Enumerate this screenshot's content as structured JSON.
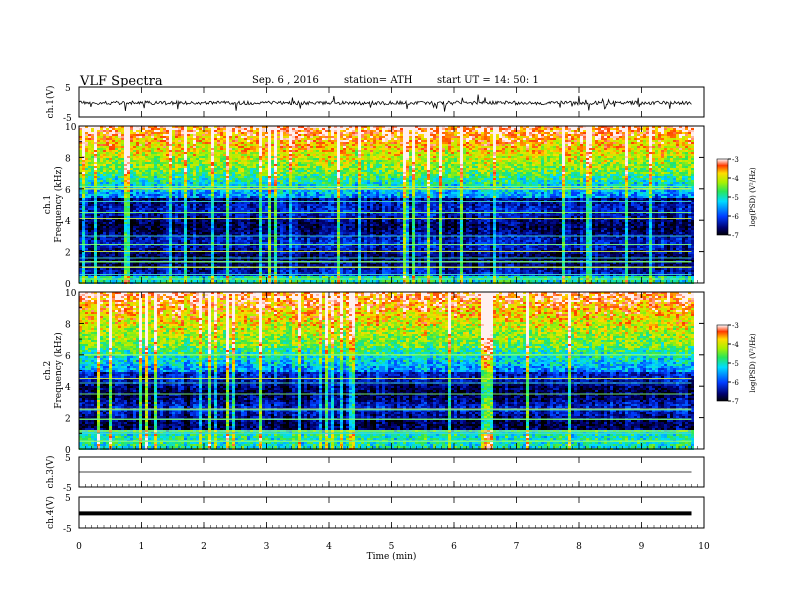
{
  "header": {
    "title": "VLF Spectra",
    "date": "Sep. 6  , 2016",
    "station": "station= ATH",
    "start": "start  UT =   14: 50: 1"
  },
  "chart_data": [
    {
      "type": "line",
      "panel": "ch1-waveform",
      "ylabel": "ch.1(V)",
      "ylim": [
        -5,
        5
      ],
      "yticks": [
        -5,
        5
      ],
      "xlim": [
        0,
        10
      ],
      "description_of_signal": "noisy trace around -0.3 V with frequent spikes",
      "color": "#000000"
    },
    {
      "type": "heatmap",
      "panel": "ch1-spectrogram",
      "ylabel": "ch.1",
      "ylabel2": "Frequency  (kHz)",
      "ylim": [
        0,
        10
      ],
      "yticks": [
        0,
        2,
        4,
        6,
        8,
        10
      ],
      "xlim": [
        0,
        9.8
      ],
      "colorbar": {
        "label": "log(PSD) (V²/Hz)",
        "range": [
          -7,
          -3
        ],
        "ticks": [
          -7,
          -6,
          -5,
          -4,
          -3
        ]
      },
      "lines_khz": [
        0.25,
        0.55,
        1.0,
        1.35,
        1.6,
        2.0,
        2.45,
        3.0,
        4.1,
        4.5,
        5.2,
        6.0,
        6.15
      ],
      "quiet_bands_khz": [
        [
          0.5,
          5.5
        ]
      ],
      "bright_top_khz": [
        7.0,
        10.0
      ]
    },
    {
      "type": "heatmap",
      "panel": "ch2-spectrogram",
      "ylabel": "ch.2",
      "ylabel2": "Frequency  (kHz)",
      "ylim": [
        0,
        10
      ],
      "yticks": [
        0,
        2,
        4,
        6,
        8,
        10
      ],
      "xlim": [
        0,
        9.8
      ],
      "colorbar": {
        "label": "log(PSD) (V²/Hz)",
        "range": [
          -7,
          -3
        ],
        "ticks": [
          -7,
          -6,
          -5,
          -4,
          -3
        ]
      },
      "lines_khz": [
        0.5,
        1.0,
        1.15,
        1.9,
        2.5,
        2.55,
        3.5,
        4.2,
        4.5,
        6.0
      ],
      "quiet_bands_khz": [
        [
          1.3,
          5.0
        ]
      ],
      "bright_top_khz": [
        6.5,
        10.0
      ]
    },
    {
      "type": "line",
      "panel": "ch3-waveform",
      "ylabel": "ch.3(V)",
      "ylim": [
        -5,
        5
      ],
      "yticks": [
        -5,
        5
      ],
      "xlim": [
        0,
        10
      ],
      "level_v": 0.0,
      "color": "#000000"
    },
    {
      "type": "line",
      "panel": "ch4-waveform",
      "ylabel": "ch.4(V)",
      "ylim": [
        -5,
        5
      ],
      "yticks": [
        -5,
        5
      ],
      "xlim": [
        0,
        10
      ],
      "level_v": -0.3,
      "color": "#000000"
    }
  ],
  "xaxis": {
    "label": "Time  (min)",
    "ticks": [
      "0",
      "1",
      "2",
      "3",
      "4",
      "5",
      "6",
      "7",
      "8",
      "9",
      "10"
    ],
    "range": [
      0,
      10
    ]
  },
  "labels": {
    "ytick_5": "5",
    "ytick_m5": "-5",
    "cb_ticks": [
      "-7",
      "-6",
      "-5",
      "-4",
      "-3"
    ],
    "freq_ticks": [
      "0",
      "2",
      "4",
      "6",
      "8",
      "10"
    ]
  }
}
